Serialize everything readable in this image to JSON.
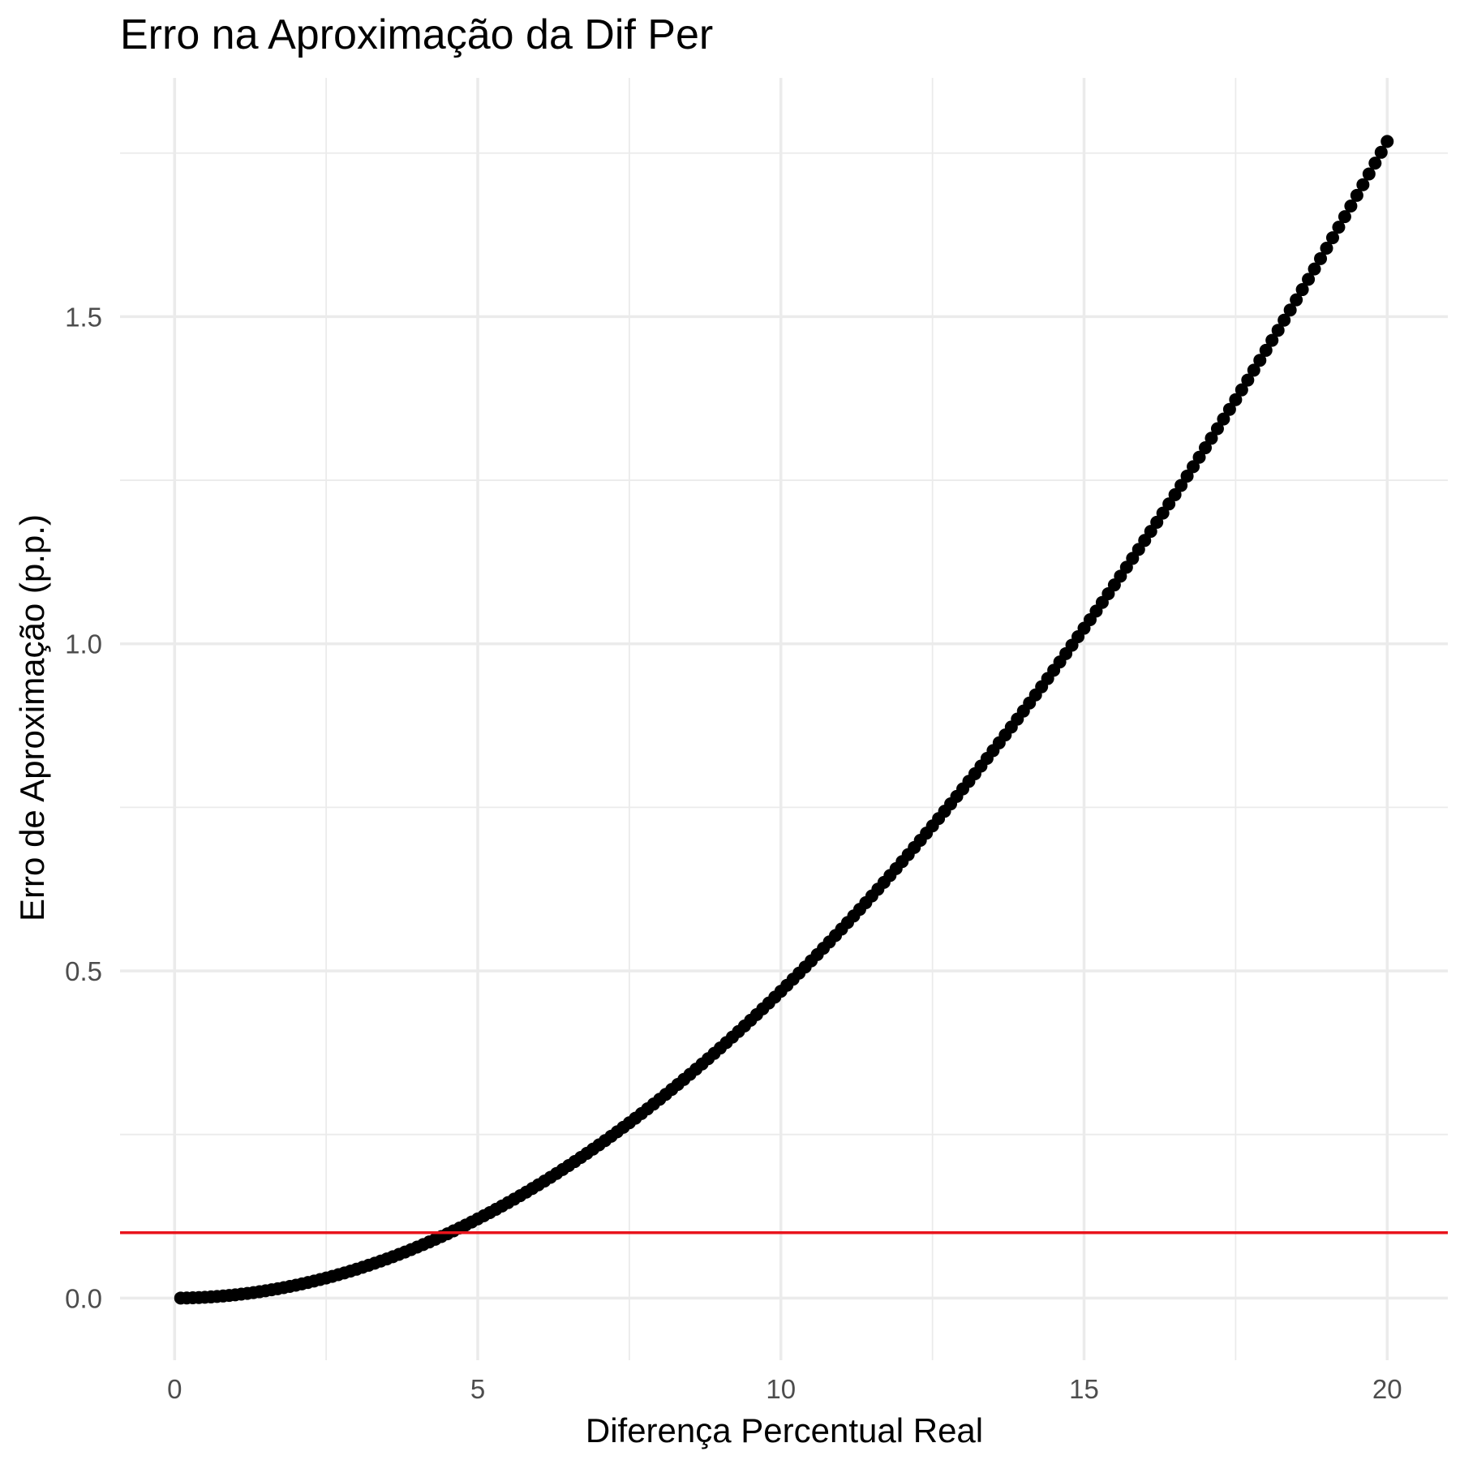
{
  "chart_data": {
    "type": "scatter",
    "title": "Erro na Aproximação da Dif Per",
    "xlabel": "Diferença Percentual Real",
    "ylabel": "Erro de Aproximação (p.p.)",
    "xlim": [
      -0.9,
      21
    ],
    "ylim": [
      -0.095,
      1.865
    ],
    "x_ticks": [
      0,
      5,
      10,
      15,
      20
    ],
    "x_tick_labels": [
      "0",
      "5",
      "10",
      "15",
      "20"
    ],
    "x_minor_ticks": [
      2.5,
      7.5,
      12.5,
      17.5
    ],
    "y_ticks": [
      0.0,
      0.5,
      1.0,
      1.5
    ],
    "y_tick_labels": [
      "0.0",
      "0.5",
      "1.0",
      "1.5"
    ],
    "y_minor_ticks": [
      0.25,
      0.75,
      1.25,
      1.75
    ],
    "grid": true,
    "series": [
      {
        "color": "#000000",
        "x_start": 0.1,
        "x_end": 20,
        "x_step": 0.1,
        "formula": "y = x - 100*ln(1 + x/100)",
        "points_sample": [
          [
            0.1,
            0.0
          ],
          [
            2,
            0.02
          ],
          [
            4,
            0.08
          ],
          [
            5,
            0.12
          ],
          [
            6,
            0.17
          ],
          [
            8,
            0.3
          ],
          [
            10,
            0.47
          ],
          [
            12,
            0.67
          ],
          [
            14,
            0.9
          ],
          [
            15,
            1.02
          ],
          [
            16,
            1.16
          ],
          [
            18,
            1.45
          ],
          [
            20,
            1.77
          ]
        ]
      }
    ],
    "hline": {
      "y": 0.1,
      "color": "#e8141c"
    }
  }
}
